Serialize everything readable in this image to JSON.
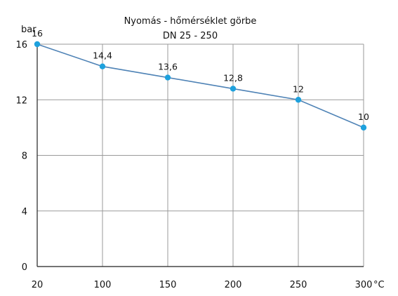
{
  "chart_data": {
    "type": "line",
    "title": "Nyomás - hőmérséklet görbe",
    "subtitle": "DN 25 - 250",
    "ylabel": "bar",
    "xlabel": "°C",
    "x": [
      20,
      100,
      150,
      200,
      250,
      300
    ],
    "x_tick_labels": [
      "20",
      "100",
      "150",
      "200",
      "250",
      "300"
    ],
    "y_ticks": [
      0,
      4,
      8,
      12,
      16
    ],
    "ylim": [
      0,
      16
    ],
    "grid": true,
    "series": [
      {
        "values": [
          16,
          14.4,
          13.6,
          12.8,
          12,
          10
        ],
        "data_labels": [
          "16",
          "14,4",
          "13,6",
          "12,8",
          "12",
          "10"
        ]
      }
    ],
    "colors": {
      "line": "#4f83b6",
      "marker": "#1ea1dd",
      "grid": "#9a9a9a",
      "axis": "#222222"
    }
  }
}
